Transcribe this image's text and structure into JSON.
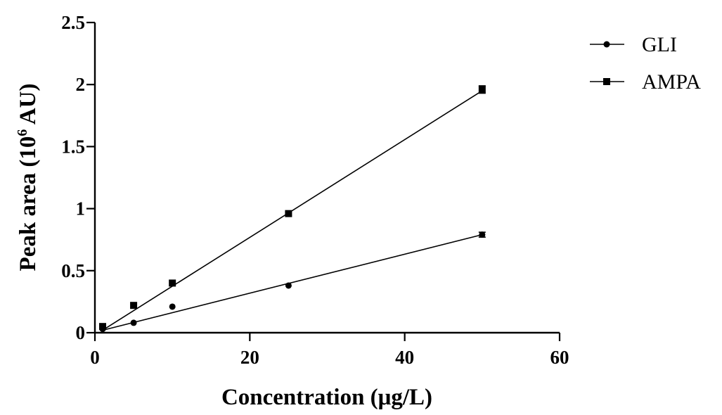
{
  "chart_data": {
    "type": "scatter",
    "xlabel": "Concentration (μg/L)",
    "ylabel_main": "Peak area (10",
    "ylabel_sup": "6",
    "ylabel_end": " AU)",
    "xlim": [
      0,
      60
    ],
    "ylim": [
      0,
      2.5
    ],
    "x_ticks": [
      0,
      20,
      40,
      60
    ],
    "x_tick_labels": [
      "0",
      "20",
      "40",
      "60"
    ],
    "y_ticks": [
      0,
      0.5,
      1,
      1.5,
      2,
      2.5
    ],
    "y_tick_labels": [
      "0",
      "0.5",
      "1",
      "1.5",
      "2",
      "2.5"
    ],
    "grid": false,
    "legend_position": "top-right",
    "series": [
      {
        "name": "GLI",
        "marker": "circle",
        "x": [
          1,
          5,
          10,
          25,
          50
        ],
        "y": [
          0.03,
          0.08,
          0.21,
          0.38,
          0.79
        ],
        "err": [
          0,
          0,
          0,
          0,
          0.02
        ],
        "fit": {
          "x": [
            1,
            50
          ],
          "y": [
            0.02,
            0.79
          ]
        }
      },
      {
        "name": "AMPA",
        "marker": "square",
        "x": [
          1,
          5,
          10,
          25,
          50
        ],
        "y": [
          0.05,
          0.22,
          0.4,
          0.96,
          1.96
        ],
        "err": [
          0,
          0,
          0,
          0,
          0.03
        ],
        "fit": {
          "x": [
            1,
            50
          ],
          "y": [
            0.02,
            1.95
          ]
        }
      }
    ]
  }
}
